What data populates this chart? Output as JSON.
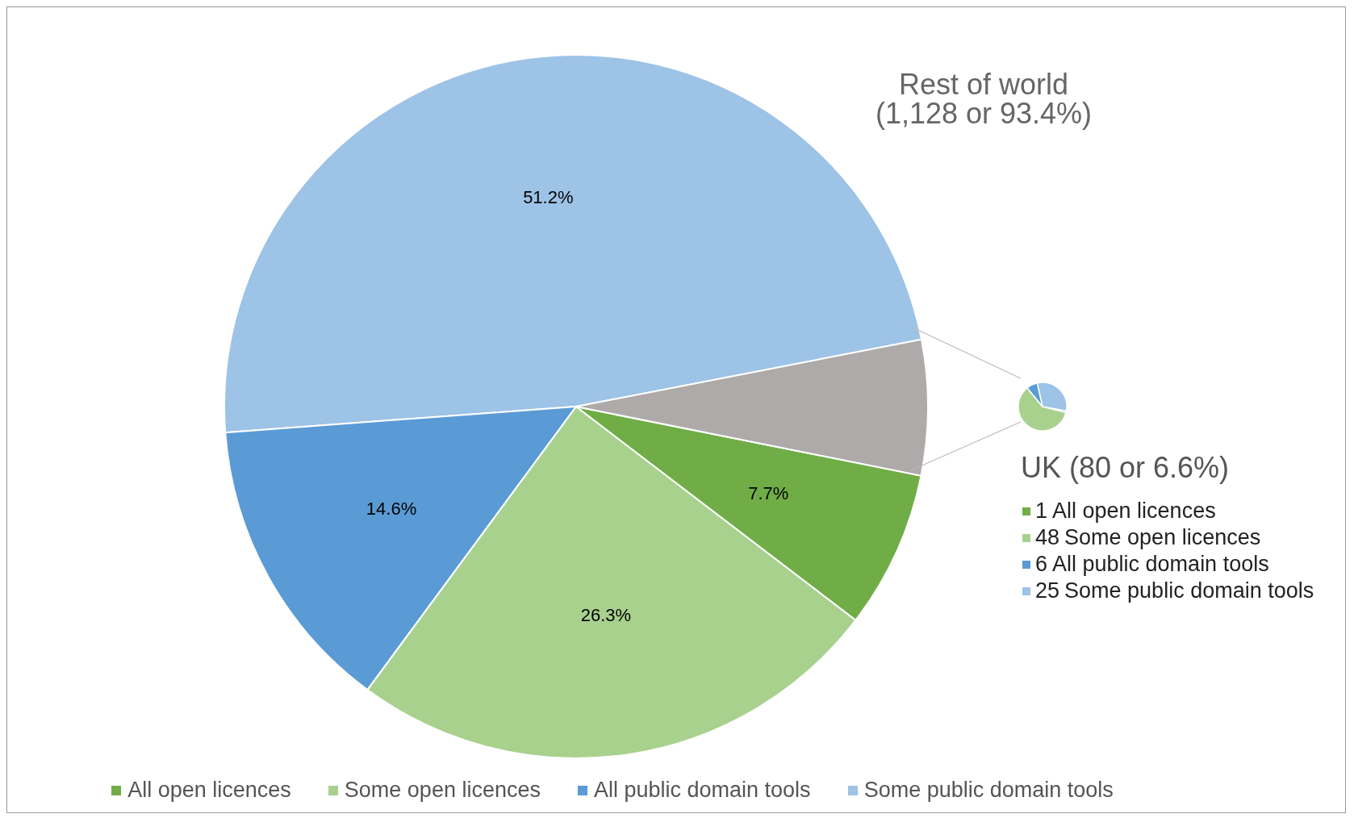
{
  "chart_data": [
    {
      "type": "pie",
      "categories": [
        "Some public domain tools",
        "All public domain tools",
        "Some open licences",
        "All open licences",
        null
      ],
      "values": [
        51.2,
        14.6,
        26.3,
        7.7,
        6.6
      ],
      "value_labels": [
        "51.2%",
        "14.6%",
        "26.3%",
        "7.7%",
        null
      ],
      "colors": [
        "#9dc3e6",
        "#5b9bd5",
        "#a9d18e",
        "#70ad47",
        "#aeaaaa"
      ],
      "legend": "bottom",
      "annotations": [
        "Rest of world\n(1,128 or 93.4%)"
      ]
    },
    {
      "type": "pie",
      "title": "UK (80 or 6.6%)",
      "categories": [
        "All open licences",
        "Some open licences",
        "All public domain tools",
        "Some public domain tools"
      ],
      "values": [
        1,
        48,
        6,
        25
      ],
      "colors": [
        "#70ad47",
        "#a9d18e",
        "#5b9bd5",
        "#9dc3e6"
      ],
      "data_labels": true,
      "legend": "right"
    }
  ]
}
